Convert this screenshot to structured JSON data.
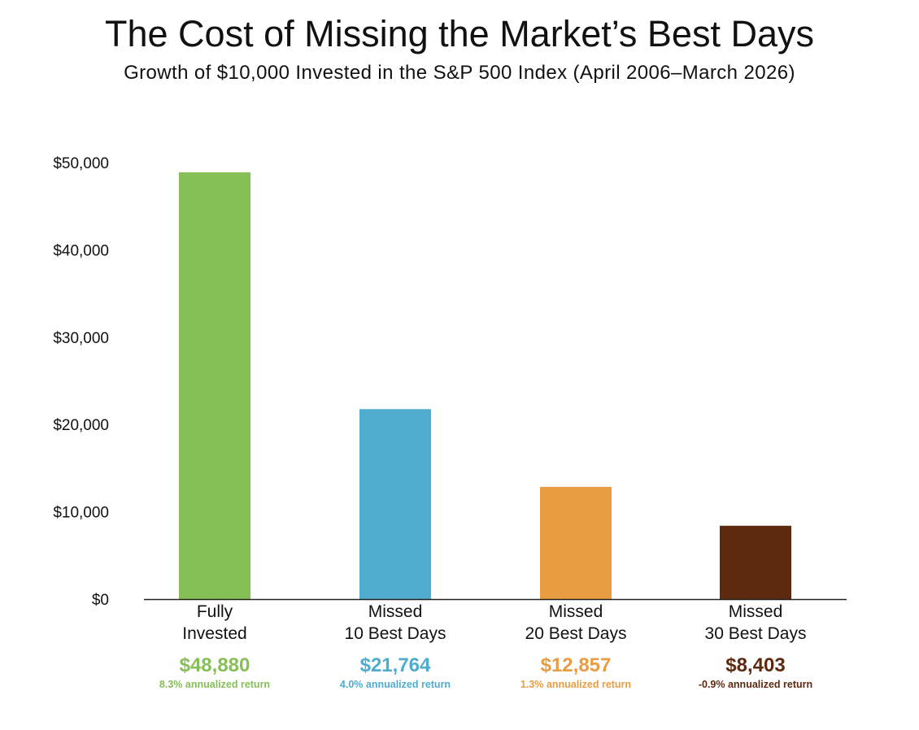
{
  "chart_data": {
    "type": "bar",
    "title": "The Cost of Missing the Market’s Best Days",
    "subtitle": "Growth of $10,000 Invested in the S&P 500 Index (April 2006–March 2026)",
    "xlabel": "",
    "ylabel": "",
    "ylim": [
      0,
      50000
    ],
    "yticks": [
      0,
      10000,
      20000,
      30000,
      40000,
      50000
    ],
    "ytick_labels": [
      "$0",
      "$10,000",
      "$20,000",
      "$30,000",
      "$40,000",
      "$50,000"
    ],
    "grid": false,
    "legend": "none",
    "categories": [
      [
        "Fully",
        "Invested"
      ],
      [
        "Missed",
        "10 Best Days"
      ],
      [
        "Missed",
        "20 Best Days"
      ],
      [
        "Missed",
        "30 Best Days"
      ]
    ],
    "values": [
      48880,
      21764,
      12857,
      8403
    ],
    "value_labels": [
      "$48,880",
      "$21,764",
      "$12,857",
      "$8,403"
    ],
    "return_labels": [
      "8.3% annualized return",
      "4.0% annualized return",
      "1.3% annualized return",
      "-0.9% annualized return"
    ],
    "colors": [
      "#86bf57",
      "#4eadcf",
      "#e99c42",
      "#5e2a0f"
    ],
    "axis_color": "#222222"
  }
}
